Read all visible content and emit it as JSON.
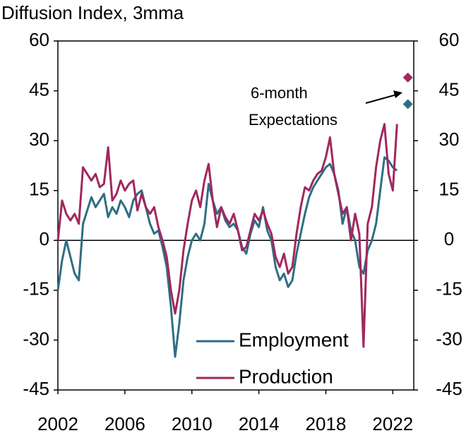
{
  "chart_data": {
    "type": "line",
    "title": "Diffusion Index, 3mma",
    "x": [
      2002,
      2002.25,
      2002.5,
      2002.75,
      2003,
      2003.25,
      2003.5,
      2003.75,
      2004,
      2004.25,
      2004.5,
      2004.75,
      2005,
      2005.25,
      2005.5,
      2005.75,
      2006,
      2006.25,
      2006.5,
      2006.75,
      2007,
      2007.25,
      2007.5,
      2007.75,
      2008,
      2008.25,
      2008.5,
      2008.75,
      2009,
      2009.25,
      2009.5,
      2009.75,
      2010,
      2010.25,
      2010.5,
      2010.75,
      2011,
      2011.25,
      2011.5,
      2011.75,
      2012,
      2012.25,
      2012.5,
      2012.75,
      2013,
      2013.25,
      2013.5,
      2013.75,
      2014,
      2014.25,
      2014.5,
      2014.75,
      2015,
      2015.25,
      2015.5,
      2015.75,
      2016,
      2016.25,
      2016.5,
      2016.75,
      2017,
      2017.25,
      2017.5,
      2017.75,
      2018,
      2018.25,
      2018.5,
      2018.75,
      2019,
      2019.25,
      2019.5,
      2019.75,
      2020,
      2020.25,
      2020.5,
      2020.75,
      2021,
      2021.25,
      2021.5,
      2021.75,
      2022,
      2022.25
    ],
    "series": [
      {
        "name": "Employment",
        "color": "#2e6e85",
        "values": [
          -15,
          -6,
          0,
          -5,
          -10,
          -12,
          5,
          9,
          13,
          10,
          12,
          14,
          7,
          10,
          8,
          12,
          10,
          7,
          12,
          14,
          15,
          10,
          5,
          2,
          3,
          -2,
          -8,
          -20,
          -35,
          -25,
          -12,
          -5,
          0,
          2,
          0,
          5,
          17,
          12,
          8,
          10,
          6,
          4,
          5,
          3,
          -2,
          -4,
          2,
          6,
          4,
          10,
          3,
          0,
          -8,
          -12,
          -10,
          -14,
          -12,
          -4,
          2,
          8,
          13,
          16,
          18,
          20,
          22,
          23,
          20,
          15,
          5,
          10,
          3,
          0,
          -8,
          -10,
          -3,
          0,
          5,
          15,
          25,
          24,
          22,
          21
        ]
      },
      {
        "name": "Production",
        "color": "#a0285e",
        "values": [
          0,
          12,
          8,
          6,
          8,
          5,
          22,
          20,
          18,
          20,
          16,
          17,
          28,
          12,
          14,
          18,
          15,
          17,
          18,
          9,
          14,
          10,
          8,
          10,
          4,
          0,
          -5,
          -15,
          -22,
          -15,
          -3,
          5,
          12,
          15,
          10,
          18,
          23,
          12,
          4,
          10,
          7,
          5,
          8,
          3,
          -3,
          -2,
          3,
          8,
          6,
          9,
          5,
          2,
          -5,
          -8,
          -4,
          -10,
          -8,
          2,
          10,
          16,
          15,
          18,
          20,
          21,
          25,
          31,
          20,
          14,
          8,
          10,
          0,
          8,
          2,
          -32,
          5,
          10,
          22,
          30,
          35,
          20,
          15,
          35
        ]
      }
    ],
    "markers": [
      {
        "x": 2022.9,
        "value": 49,
        "color": "#a0285e"
      },
      {
        "x": 2022.9,
        "value": 41,
        "color": "#2e6e85"
      }
    ],
    "annotation": [
      "6-month",
      "Expectations"
    ],
    "xlim": [
      2002,
      2023.25
    ],
    "xticks": [
      2002,
      2006,
      2010,
      2014,
      2018,
      2022
    ],
    "ylim": [
      -45,
      60
    ],
    "yticks": [
      -45,
      -30,
      -15,
      0,
      15,
      30,
      45,
      60
    ],
    "y2lim": [
      -45,
      60
    ],
    "y2ticks": [
      -45,
      -30,
      -15,
      0,
      15,
      30,
      45,
      60
    ]
  }
}
